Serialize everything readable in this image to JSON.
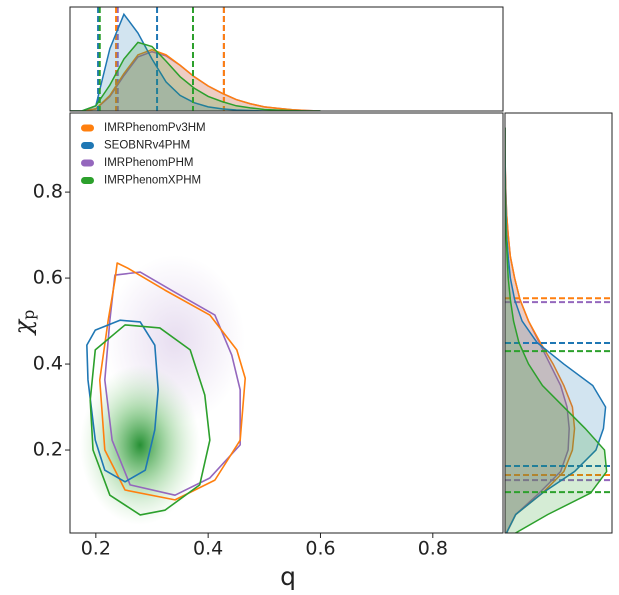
{
  "chart_data": {
    "type": "joint",
    "xlabel": "q",
    "ylabel": {
      "symbol": "χ",
      "subscript": "p"
    },
    "xlim": [
      0.154,
      0.925
    ],
    "ylim": [
      0.007,
      0.984
    ],
    "xticks": [
      0.2,
      0.4,
      0.6,
      0.8
    ],
    "yticks": [
      0.2,
      0.4,
      0.6,
      0.8
    ],
    "legend": "upper left",
    "top_density_lim": [
      0,
      10
    ],
    "right_density_lim": [
      0,
      10
    ],
    "q_grid": [
      0.15,
      0.175,
      0.2,
      0.225,
      0.25,
      0.275,
      0.3,
      0.325,
      0.35,
      0.375,
      0.4,
      0.425,
      0.45,
      0.475,
      0.5,
      0.525,
      0.55,
      0.575,
      0.6
    ],
    "chi_grid": [
      0,
      0.05,
      0.1,
      0.15,
      0.2,
      0.25,
      0.3,
      0.35,
      0.4,
      0.45,
      0.5,
      0.55,
      0.6,
      0.65,
      0.7,
      0.75,
      0.8,
      0.85,
      0.9,
      0.95
    ],
    "series": [
      {
        "name": "IMRPhenomPv3HM",
        "color": "#ff7f0e",
        "contour": {
          "x": [
            0.238,
            0.257,
            0.323,
            0.403,
            0.451,
            0.466,
            0.457,
            0.412,
            0.341,
            0.252,
            0.216,
            0.207,
            0.222,
            0.234
          ],
          "y": [
            0.635,
            0.623,
            0.572,
            0.514,
            0.433,
            0.367,
            0.223,
            0.13,
            0.084,
            0.107,
            0.2,
            0.363,
            0.502,
            0.595
          ]
        },
        "q_quantiles": [
          0.236,
          0.428
        ],
        "chi_quantiles": [
          0.142,
          0.553
        ],
        "top_density": [
          0,
          0,
          0.2,
          1.5,
          3.6,
          5.4,
          5.9,
          5.4,
          4.4,
          3.3,
          2.4,
          1.7,
          1.1,
          0.7,
          0.4,
          0.25,
          0.12,
          0.05,
          0
        ],
        "right_density": [
          0,
          1,
          3.5,
          5.5,
          6.3,
          6.5,
          6.3,
          5.5,
          4.5,
          3.3,
          2.2,
          1.4,
          0.9,
          0.5,
          0.3,
          0.15,
          0.08,
          0.03,
          0,
          0
        ]
      },
      {
        "name": "SEOBNRv4PHM",
        "color": "#1f77b4",
        "contour": {
          "x": [
            0.199,
            0.243,
            0.279,
            0.305,
            0.311,
            0.305,
            0.288,
            0.252,
            0.216,
            0.199,
            0.186,
            0.184
          ],
          "y": [
            0.479,
            0.502,
            0.498,
            0.444,
            0.34,
            0.247,
            0.153,
            0.126,
            0.153,
            0.223,
            0.363,
            0.444
          ]
        },
        "q_quantiles": [
          0.204,
          0.309
        ],
        "chi_quantiles": [
          0.163,
          0.449
        ],
        "top_density": [
          0,
          0,
          0.5,
          6,
          9.3,
          7.5,
          5,
          2.8,
          1.5,
          0.8,
          0.4,
          0.2,
          0.1,
          0.05,
          0,
          0,
          0,
          0,
          0
        ],
        "right_density": [
          0,
          1,
          3.5,
          6.5,
          8.5,
          9.2,
          9.4,
          8.2,
          5.5,
          3,
          1.6,
          0.9,
          0.5,
          0.3,
          0.15,
          0.1,
          0.05,
          0.02,
          0,
          0
        ]
      },
      {
        "name": "IMRPhenomPHM",
        "color": "#9467bd",
        "contour": {
          "x": [
            0.234,
            0.279,
            0.341,
            0.412,
            0.442,
            0.457,
            0.457,
            0.403,
            0.341,
            0.261,
            0.229,
            0.216,
            0.225
          ],
          "y": [
            0.607,
            0.614,
            0.567,
            0.514,
            0.421,
            0.34,
            0.212,
            0.135,
            0.095,
            0.119,
            0.223,
            0.363,
            0.502
          ]
        },
        "q_quantiles": [
          0.239,
          0.428
        ],
        "chi_quantiles": [
          0.13,
          0.544
        ],
        "top_density": [
          0,
          0,
          0.2,
          1.4,
          3.4,
          5.2,
          5.7,
          5.3,
          4.4,
          3.3,
          2.4,
          1.7,
          1.1,
          0.7,
          0.4,
          0.25,
          0.12,
          0.05,
          0
        ],
        "right_density": [
          0,
          1,
          3.2,
          5.2,
          5.9,
          6,
          5.8,
          5.2,
          4.2,
          3.2,
          2.2,
          1.4,
          0.9,
          0.5,
          0.3,
          0.15,
          0.08,
          0.03,
          0,
          0
        ]
      },
      {
        "name": "IMRPhenomXPHM",
        "color": "#2ca02c",
        "contour": {
          "x": [
            0.199,
            0.252,
            0.314,
            0.368,
            0.394,
            0.403,
            0.385,
            0.323,
            0.279,
            0.225,
            0.195,
            0.19
          ],
          "y": [
            0.433,
            0.491,
            0.484,
            0.433,
            0.328,
            0.223,
            0.119,
            0.06,
            0.049,
            0.095,
            0.2,
            0.316
          ]
        },
        "q_quantiles": [
          0.207,
          0.373
        ],
        "chi_quantiles": [
          0.102,
          0.43
        ],
        "top_density": [
          0,
          0,
          0.5,
          2.5,
          5,
          6.6,
          6.2,
          4.8,
          3.3,
          2.2,
          1.4,
          0.9,
          0.5,
          0.3,
          0.15,
          0.08,
          0.04,
          0,
          0
        ],
        "right_density": [
          0.5,
          4,
          8,
          9.5,
          9.3,
          7.5,
          5.5,
          3.5,
          2.2,
          1.3,
          0.8,
          0.5,
          0.3,
          0.2,
          0.1,
          0.05,
          0.02,
          0,
          0,
          0
        ]
      }
    ]
  }
}
